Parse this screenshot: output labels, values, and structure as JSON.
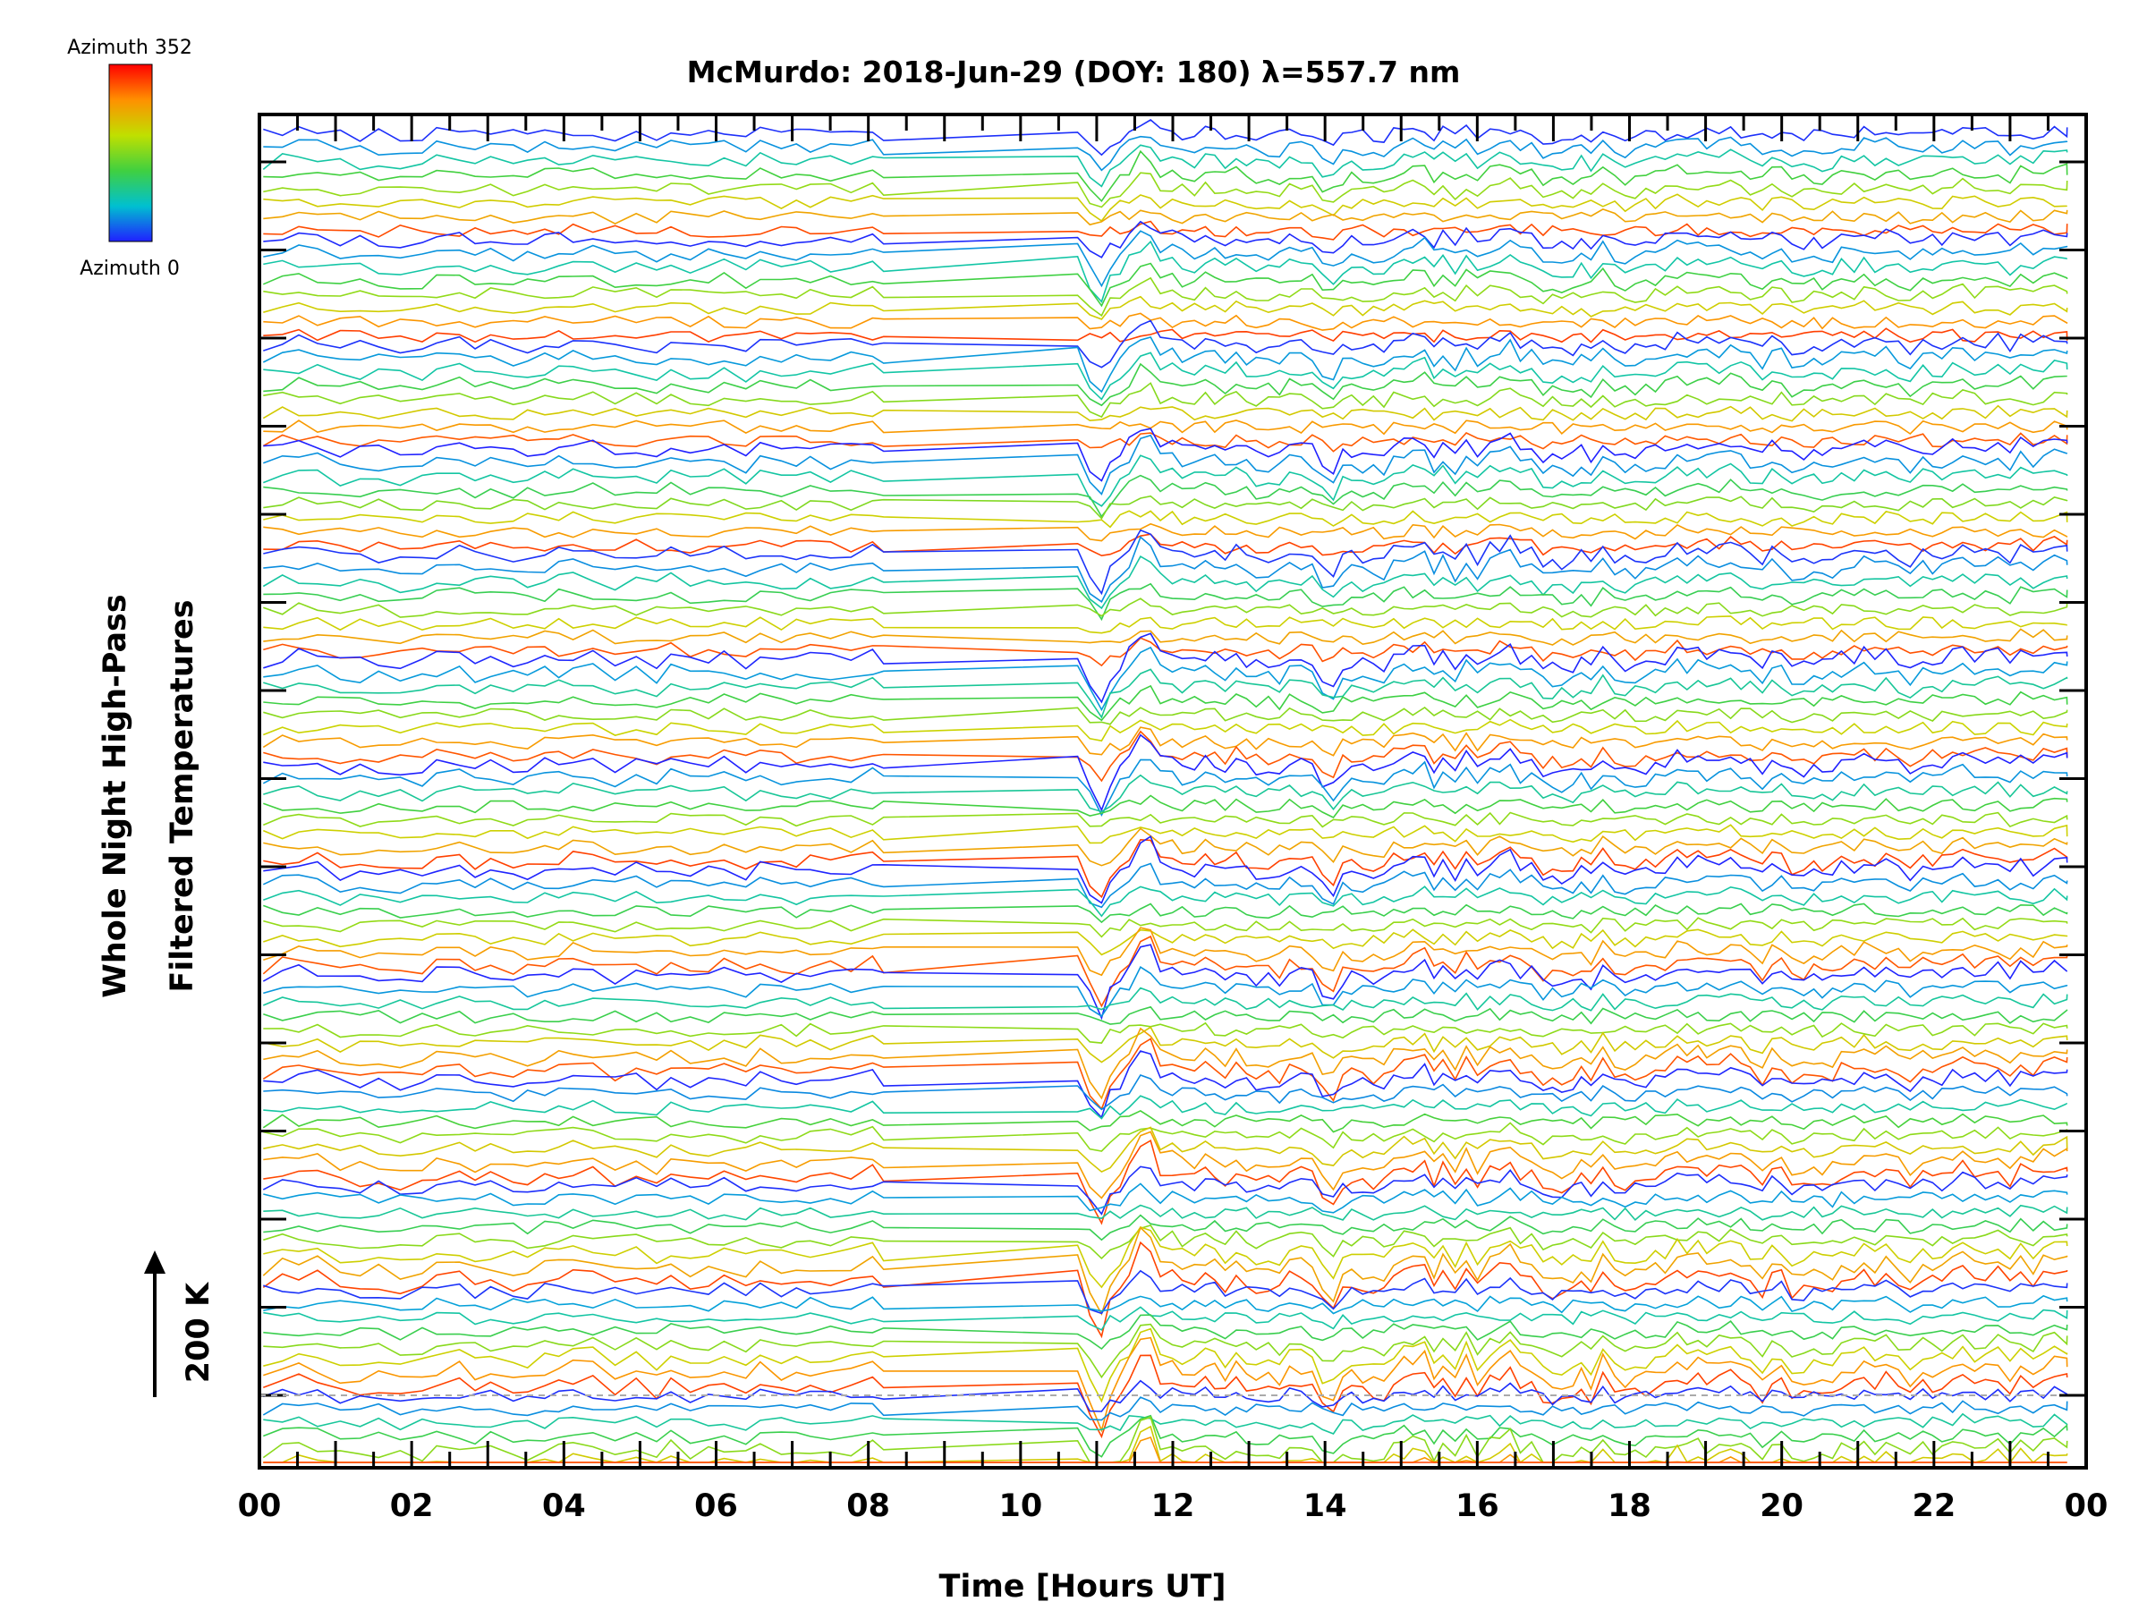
{
  "chart_data": {
    "type": "line",
    "title": "McMurdo: 2018-Jun-29 (DOY: 180) λ=557.7 nm",
    "xlabel": "Time [Hours UT]",
    "ylabel_line1": "Whole Night High-Pass",
    "ylabel_line2": "Filtered Temperatures",
    "scale_label": "200 K",
    "xlim": [
      0,
      24
    ],
    "xtick_labels": [
      "00",
      "02",
      "04",
      "06",
      "08",
      "10",
      "12",
      "14",
      "16",
      "18",
      "20",
      "22",
      "00"
    ],
    "colorbar": {
      "top_label": "Azimuth 352",
      "bottom_label": "Azimuth 0",
      "colors": [
        "#2020ff",
        "#00c0d0",
        "#40d040",
        "#c0e000",
        "#ff9000",
        "#ff0000"
      ]
    },
    "series_description_bands": 13,
    "series_per_band": 8,
    "azimuth_min": 0,
    "azimuth_max": 352,
    "gap_hours": [
      8.2,
      10.75
    ],
    "disturbance_events_hours": [
      11.05,
      11.65,
      14.1,
      15.2,
      16.3,
      19.1
    ]
  }
}
